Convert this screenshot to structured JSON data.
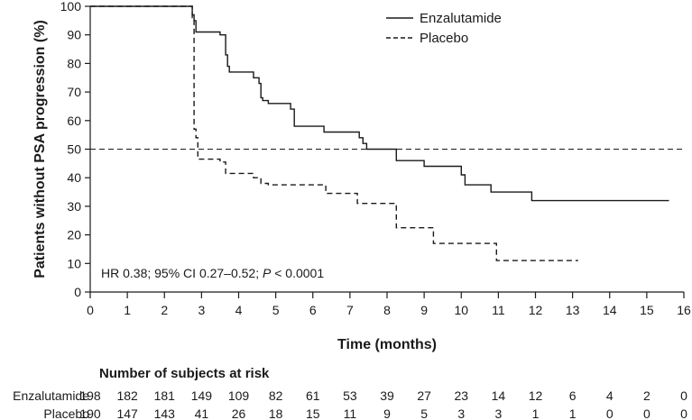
{
  "chart_data": {
    "type": "line",
    "subtype": "kaplan-meier step",
    "xlabel": "Time (months)",
    "ylabel": "Patients without PSA progression (%)",
    "xlim": [
      0,
      16
    ],
    "ylim": [
      0,
      100
    ],
    "xticks": [
      0,
      1,
      2,
      3,
      4,
      5,
      6,
      7,
      8,
      9,
      10,
      11,
      12,
      13,
      14,
      15,
      16
    ],
    "yticks": [
      0,
      10,
      20,
      30,
      40,
      50,
      60,
      70,
      80,
      90,
      100
    ],
    "grid": false,
    "legend_position": "top-right",
    "reference_line": {
      "y": 50,
      "style": "dashed"
    },
    "annotation": {
      "prefix": "HR 0.38; 95% CI 0.27–0.52; ",
      "p_italic": "P",
      "suffix": " < 0.0001"
    },
    "series": [
      {
        "name": "Enzalutamide",
        "style": "solid",
        "color": "#1a1a1a",
        "points": [
          [
            0,
            100
          ],
          [
            2.75,
            100
          ],
          [
            2.75,
            97
          ],
          [
            2.8,
            97
          ],
          [
            2.8,
            95
          ],
          [
            2.85,
            95
          ],
          [
            2.85,
            91
          ],
          [
            3.5,
            91
          ],
          [
            3.5,
            90
          ],
          [
            3.65,
            90
          ],
          [
            3.65,
            83
          ],
          [
            3.7,
            83
          ],
          [
            3.7,
            79
          ],
          [
            3.75,
            79
          ],
          [
            3.75,
            77
          ],
          [
            4.4,
            77
          ],
          [
            4.4,
            75
          ],
          [
            4.55,
            75
          ],
          [
            4.55,
            73
          ],
          [
            4.6,
            73
          ],
          [
            4.6,
            68
          ],
          [
            4.65,
            68
          ],
          [
            4.65,
            67
          ],
          [
            4.8,
            67
          ],
          [
            4.8,
            66
          ],
          [
            5.4,
            66
          ],
          [
            5.4,
            64
          ],
          [
            5.5,
            64
          ],
          [
            5.5,
            58
          ],
          [
            6.3,
            58
          ],
          [
            6.3,
            56
          ],
          [
            7.25,
            56
          ],
          [
            7.25,
            54
          ],
          [
            7.35,
            54
          ],
          [
            7.35,
            52
          ],
          [
            7.45,
            52
          ],
          [
            7.45,
            50
          ],
          [
            8.25,
            50
          ],
          [
            8.25,
            46
          ],
          [
            9.0,
            46
          ],
          [
            9.0,
            44
          ],
          [
            10.0,
            44
          ],
          [
            10.0,
            41
          ],
          [
            10.1,
            41
          ],
          [
            10.1,
            37.5
          ],
          [
            10.8,
            37.5
          ],
          [
            10.8,
            35
          ],
          [
            11.9,
            35
          ],
          [
            11.9,
            32
          ],
          [
            15.6,
            32
          ]
        ]
      },
      {
        "name": "Placebo",
        "style": "dashed",
        "color": "#1a1a1a",
        "points": [
          [
            0,
            100
          ],
          [
            2.75,
            100
          ],
          [
            2.75,
            96
          ],
          [
            2.8,
            96
          ],
          [
            2.8,
            57
          ],
          [
            2.85,
            57
          ],
          [
            2.85,
            54
          ],
          [
            2.9,
            54
          ],
          [
            2.9,
            46.5
          ],
          [
            3.5,
            46.5
          ],
          [
            3.5,
            45.5
          ],
          [
            3.65,
            45.5
          ],
          [
            3.65,
            41.5
          ],
          [
            4.4,
            41.5
          ],
          [
            4.4,
            40
          ],
          [
            4.6,
            40
          ],
          [
            4.6,
            38
          ],
          [
            4.8,
            38
          ],
          [
            4.8,
            37.5
          ],
          [
            6.35,
            37.5
          ],
          [
            6.35,
            34.5
          ],
          [
            7.2,
            34.5
          ],
          [
            7.2,
            31
          ],
          [
            8.25,
            31
          ],
          [
            8.25,
            22.5
          ],
          [
            9.25,
            22.5
          ],
          [
            9.25,
            17
          ],
          [
            10.95,
            17
          ],
          [
            10.95,
            11
          ],
          [
            13.15,
            11
          ]
        ]
      }
    ],
    "risk_table": {
      "title": "Number of subjects at risk",
      "times": [
        0,
        1,
        2,
        3,
        4,
        5,
        6,
        7,
        8,
        9,
        10,
        11,
        12,
        13,
        14,
        15,
        16
      ],
      "rows": [
        {
          "label": "Enzalutamide",
          "values": [
            198,
            182,
            181,
            149,
            109,
            82,
            61,
            53,
            39,
            27,
            23,
            14,
            12,
            6,
            4,
            2,
            0
          ]
        },
        {
          "label": "Placebo",
          "values": [
            190,
            147,
            143,
            41,
            26,
            18,
            15,
            11,
            9,
            5,
            3,
            3,
            1,
            1,
            0,
            0,
            0
          ]
        }
      ]
    }
  }
}
